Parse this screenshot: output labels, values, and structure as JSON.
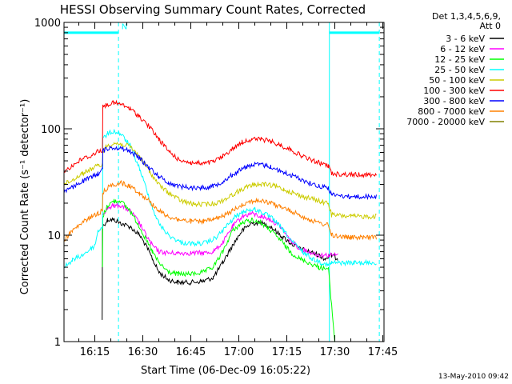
{
  "chart_data": {
    "type": "line",
    "title": "HESSI Observing Summary Count Rates, Corrected",
    "xlabel": "Start Time (06-Dec-09 16:05:22)",
    "ylabel": "Corrected Count Rate (s⁻¹ detector⁻¹)",
    "footer": "13-May-2010 09:42",
    "yscale": "log",
    "xlim_min": [
      5.37,
      105.37
    ],
    "ylim": [
      1,
      1000
    ],
    "x_ticks_min": [
      15,
      30,
      45,
      60,
      75,
      90,
      105
    ],
    "x_tick_labels": [
      "16:15",
      "16:30",
      "16:45",
      "17:00",
      "17:15",
      "17:30",
      "17:45"
    ],
    "y_ticks": [
      1,
      10,
      100,
      1000
    ],
    "y_tick_labels": [
      "1",
      "10",
      "100",
      "1000"
    ],
    "grid": false,
    "legend_header": [
      "Det 1,3,4,5,6,9,",
      "Att 0"
    ],
    "legend_position": "right",
    "vlines_min": [
      {
        "x": 5.37,
        "color": "#00ffff",
        "style": "solid"
      },
      {
        "x": 22.4,
        "color": "#00ffff",
        "style": "dashed"
      },
      {
        "x": 88.3,
        "color": "#00ffff",
        "style": "solid"
      },
      {
        "x": 103.9,
        "color": "#00ffff",
        "style": "dashed"
      }
    ],
    "flag_bars_min": [
      {
        "x0": 5.37,
        "x1": 22.4,
        "y": 800,
        "color": "#00ffff"
      },
      {
        "x0": 88.3,
        "x1": 103.9,
        "y": 800,
        "color": "#00ffff"
      }
    ],
    "flag_label": {
      "text": "N",
      "x": 23.3,
      "y": 860,
      "color": "#00ffff"
    },
    "series": [
      {
        "name": "3 - 6 keV",
        "color": "#000000",
        "points": [
          [
            17.3,
            1.6
          ],
          [
            17.4,
            12
          ],
          [
            19,
            14
          ],
          [
            21,
            14
          ],
          [
            23,
            13
          ],
          [
            26,
            12
          ],
          [
            29,
            10
          ],
          [
            31,
            8
          ],
          [
            33,
            6
          ],
          [
            35,
            4.5
          ],
          [
            38,
            3.8
          ],
          [
            41,
            3.6
          ],
          [
            45,
            3.6
          ],
          [
            49,
            3.7
          ],
          [
            52,
            4.0
          ],
          [
            55,
            5.5
          ],
          [
            58,
            8
          ],
          [
            61,
            11
          ],
          [
            64,
            13
          ],
          [
            67,
            13
          ],
          [
            70,
            12
          ],
          [
            73,
            10
          ],
          [
            76,
            8.5
          ],
          [
            79,
            7.5
          ],
          [
            82,
            7
          ],
          [
            85,
            6.5
          ],
          [
            87,
            6
          ],
          [
            89,
            6.5
          ],
          [
            91,
            6
          ]
        ]
      },
      {
        "name": "6 - 12 keV",
        "color": "#ff00ff",
        "points": [
          [
            17.5,
            16
          ],
          [
            19,
            18
          ],
          [
            21,
            19
          ],
          [
            23,
            19
          ],
          [
            26,
            17
          ],
          [
            29,
            13
          ],
          [
            31,
            10
          ],
          [
            33,
            8
          ],
          [
            35,
            7
          ],
          [
            38,
            6.8
          ],
          [
            41,
            6.8
          ],
          [
            45,
            6.8
          ],
          [
            49,
            6.8
          ],
          [
            52,
            7
          ],
          [
            55,
            8.5
          ],
          [
            58,
            12
          ],
          [
            61,
            15
          ],
          [
            64,
            16
          ],
          [
            67,
            15
          ],
          [
            70,
            14
          ],
          [
            73,
            12
          ],
          [
            76,
            9
          ],
          [
            79,
            7.5
          ],
          [
            82,
            7
          ],
          [
            85,
            6.5
          ],
          [
            88,
            6.5
          ],
          [
            91,
            6.5
          ]
        ]
      },
      {
        "name": "12 - 25 keV",
        "color": "#00ff00",
        "points": [
          [
            17.4,
            5
          ],
          [
            17.5,
            15
          ],
          [
            19,
            19
          ],
          [
            21,
            21
          ],
          [
            23,
            21
          ],
          [
            26,
            17
          ],
          [
            29,
            12
          ],
          [
            31,
            9
          ],
          [
            33,
            7
          ],
          [
            35,
            5.5
          ],
          [
            38,
            4.5
          ],
          [
            41,
            4.3
          ],
          [
            45,
            4.3
          ],
          [
            49,
            4.5
          ],
          [
            52,
            5
          ],
          [
            55,
            7
          ],
          [
            58,
            11
          ],
          [
            61,
            13
          ],
          [
            64,
            14
          ],
          [
            67,
            13
          ],
          [
            70,
            11
          ],
          [
            73,
            9
          ],
          [
            76,
            7
          ],
          [
            79,
            6
          ],
          [
            82,
            5.5
          ],
          [
            85,
            5
          ],
          [
            88,
            4.8
          ],
          [
            90,
            1
          ]
        ]
      },
      {
        "name": "25 - 50 keV",
        "color": "#00ffff",
        "points": [
          [
            5.37,
            5
          ],
          [
            8,
            5.8
          ],
          [
            11,
            6.5
          ],
          [
            14,
            7.5
          ],
          [
            15,
            8
          ],
          [
            16,
            11
          ],
          [
            17.4,
            12
          ],
          [
            17.5,
            80
          ],
          [
            19,
            90
          ],
          [
            21,
            95
          ],
          [
            23,
            90
          ],
          [
            26,
            70
          ],
          [
            29,
            42
          ],
          [
            31,
            28
          ],
          [
            33,
            18
          ],
          [
            35,
            13
          ],
          [
            38,
            10
          ],
          [
            42,
            8.5
          ],
          [
            46,
            8.3
          ],
          [
            50,
            8.5
          ],
          [
            53,
            9.5
          ],
          [
            56,
            12
          ],
          [
            59,
            15
          ],
          [
            62,
            17
          ],
          [
            65,
            17.5
          ],
          [
            68,
            16
          ],
          [
            71,
            14
          ],
          [
            74,
            11
          ],
          [
            77,
            8.5
          ],
          [
            80,
            7
          ],
          [
            83,
            6
          ],
          [
            86,
            5.5
          ],
          [
            88,
            5.2
          ],
          [
            89,
            5.5
          ],
          [
            91,
            5.5
          ],
          [
            96,
            5.5
          ],
          [
            103,
            5.5
          ]
        ]
      },
      {
        "name": "50 - 100 keV",
        "color": "#cccc00",
        "points": [
          [
            5.37,
            30
          ],
          [
            8,
            33
          ],
          [
            11,
            38
          ],
          [
            14,
            42
          ],
          [
            16,
            45
          ],
          [
            17.4,
            46
          ],
          [
            17.5,
            62
          ],
          [
            19,
            70
          ],
          [
            21,
            73
          ],
          [
            23,
            72
          ],
          [
            26,
            68
          ],
          [
            29,
            55
          ],
          [
            32,
            40
          ],
          [
            35,
            30
          ],
          [
            38,
            25
          ],
          [
            42,
            21
          ],
          [
            46,
            19.5
          ],
          [
            50,
            19.5
          ],
          [
            53,
            20
          ],
          [
            56,
            22
          ],
          [
            59,
            25
          ],
          [
            62,
            28
          ],
          [
            65,
            30
          ],
          [
            68,
            30
          ],
          [
            71,
            29
          ],
          [
            74,
            27
          ],
          [
            77,
            25
          ],
          [
            80,
            23
          ],
          [
            83,
            22
          ],
          [
            86,
            20.5
          ],
          [
            88,
            20
          ],
          [
            89,
            15.5
          ],
          [
            95,
            15
          ],
          [
            103,
            15
          ]
        ]
      },
      {
        "name": "100 - 300 keV",
        "color": "#ff0000",
        "points": [
          [
            5.37,
            40
          ],
          [
            8,
            45
          ],
          [
            11,
            52
          ],
          [
            14,
            56
          ],
          [
            16,
            62
          ],
          [
            17.4,
            63
          ],
          [
            17.5,
            160
          ],
          [
            19,
            170
          ],
          [
            21,
            175
          ],
          [
            23,
            170
          ],
          [
            26,
            155
          ],
          [
            29,
            130
          ],
          [
            32,
            105
          ],
          [
            35,
            80
          ],
          [
            38,
            62
          ],
          [
            41,
            52
          ],
          [
            45,
            48
          ],
          [
            49,
            47
          ],
          [
            52,
            49
          ],
          [
            55,
            55
          ],
          [
            58,
            65
          ],
          [
            61,
            75
          ],
          [
            64,
            80
          ],
          [
            67,
            80
          ],
          [
            70,
            76
          ],
          [
            73,
            70
          ],
          [
            76,
            64
          ],
          [
            79,
            57
          ],
          [
            82,
            52
          ],
          [
            85,
            48
          ],
          [
            88,
            45
          ],
          [
            89,
            38
          ],
          [
            95,
            37
          ],
          [
            103,
            37
          ]
        ]
      },
      {
        "name": "300 - 800 keV",
        "color": "#0000ff",
        "points": [
          [
            5.37,
            26
          ],
          [
            8,
            28
          ],
          [
            11,
            32
          ],
          [
            14,
            35
          ],
          [
            16,
            38
          ],
          [
            17.4,
            42
          ],
          [
            17.5,
            62
          ],
          [
            19,
            65
          ],
          [
            21,
            67
          ],
          [
            23,
            66
          ],
          [
            26,
            62
          ],
          [
            29,
            53
          ],
          [
            32,
            43
          ],
          [
            35,
            36
          ],
          [
            38,
            31
          ],
          [
            41,
            29
          ],
          [
            45,
            28
          ],
          [
            49,
            28
          ],
          [
            52,
            29
          ],
          [
            55,
            32
          ],
          [
            58,
            37
          ],
          [
            61,
            42
          ],
          [
            64,
            46
          ],
          [
            67,
            46
          ],
          [
            70,
            44
          ],
          [
            73,
            40
          ],
          [
            76,
            37
          ],
          [
            79,
            34
          ],
          [
            82,
            31
          ],
          [
            85,
            29
          ],
          [
            88,
            28
          ],
          [
            89,
            24
          ],
          [
            95,
            23
          ],
          [
            103,
            23
          ]
        ]
      },
      {
        "name": "800 - 7000 keV",
        "color": "#ff8000",
        "points": [
          [
            5.37,
            9
          ],
          [
            8,
            11
          ],
          [
            11,
            13
          ],
          [
            14,
            15
          ],
          [
            16,
            16
          ],
          [
            17.4,
            17
          ],
          [
            17.5,
            25
          ],
          [
            19,
            28
          ],
          [
            21,
            30
          ],
          [
            23,
            31
          ],
          [
            26,
            29
          ],
          [
            29,
            25
          ],
          [
            32,
            21
          ],
          [
            35,
            17
          ],
          [
            38,
            15
          ],
          [
            41,
            14
          ],
          [
            45,
            13.5
          ],
          [
            49,
            13.5
          ],
          [
            52,
            14
          ],
          [
            55,
            15
          ],
          [
            58,
            17
          ],
          [
            61,
            19.5
          ],
          [
            64,
            21
          ],
          [
            67,
            21
          ],
          [
            70,
            20
          ],
          [
            73,
            18.5
          ],
          [
            76,
            17
          ],
          [
            79,
            15.5
          ],
          [
            82,
            14
          ],
          [
            85,
            13
          ],
          [
            88,
            12.5
          ],
          [
            89,
            10
          ],
          [
            95,
            9.5
          ],
          [
            103,
            9.5
          ]
        ]
      },
      {
        "name": "7000 - 20000 keV",
        "color": "#808000",
        "points": []
      }
    ]
  }
}
